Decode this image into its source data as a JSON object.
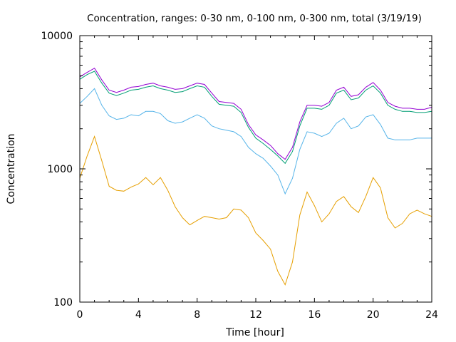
{
  "chart_data": {
    "type": "line",
    "title": "Concentration, ranges: 0-30 nm, 0-100 nm, 0-300 nm, total (3/19/19)",
    "xlabel": "Time [hour]",
    "ylabel": "Concentration",
    "xlim": [
      0,
      24
    ],
    "ylim": [
      100,
      10000
    ],
    "yscale": "log",
    "grid": false,
    "legend": "none",
    "x_ticks": [
      0,
      4,
      8,
      12,
      16,
      20,
      24
    ],
    "y_ticks": [
      100,
      1000,
      10000
    ],
    "x": [
      0,
      0.5,
      1,
      1.5,
      2,
      2.5,
      3,
      3.5,
      4,
      4.5,
      5,
      5.5,
      6,
      6.5,
      7,
      7.5,
      8,
      8.5,
      9,
      9.5,
      10,
      10.5,
      11,
      11.5,
      12,
      12.5,
      13,
      13.5,
      14,
      14.5,
      15,
      15.5,
      16,
      16.5,
      17,
      17.5,
      18,
      18.5,
      19,
      19.5,
      20,
      20.5,
      21,
      21.5,
      22,
      22.5,
      23,
      23.5,
      24
    ],
    "series": [
      {
        "color": "#e69f00",
        "values": [
          850,
          1250,
          1750,
          1150,
          740,
          690,
          680,
          730,
          770,
          860,
          760,
          860,
          690,
          520,
          430,
          380,
          410,
          440,
          430,
          420,
          430,
          500,
          490,
          430,
          330,
          290,
          250,
          170,
          135,
          200,
          450,
          670,
          530,
          400,
          460,
          570,
          620,
          520,
          470,
          620,
          860,
          720,
          430,
          360,
          390,
          460,
          490,
          460,
          440
        ]
      },
      {
        "color": "#56b4e9",
        "values": [
          3100,
          3500,
          4000,
          3000,
          2500,
          2350,
          2400,
          2550,
          2500,
          2700,
          2700,
          2600,
          2300,
          2200,
          2250,
          2400,
          2550,
          2400,
          2100,
          2000,
          1950,
          1900,
          1750,
          1450,
          1300,
          1200,
          1050,
          900,
          650,
          850,
          1400,
          1900,
          1850,
          1750,
          1850,
          2200,
          2400,
          2000,
          2100,
          2450,
          2550,
          2150,
          1700,
          1650,
          1650,
          1650,
          1700,
          1700,
          1700
        ]
      },
      {
        "color": "#009e73",
        "values": [
          4700,
          5100,
          5400,
          4400,
          3700,
          3550,
          3700,
          3900,
          3950,
          4100,
          4200,
          4000,
          3900,
          3750,
          3800,
          4000,
          4200,
          4100,
          3500,
          3050,
          3000,
          2950,
          2650,
          2050,
          1700,
          1550,
          1400,
          1250,
          1100,
          1350,
          2100,
          2850,
          2850,
          2800,
          3000,
          3700,
          3900,
          3300,
          3400,
          3900,
          4200,
          3700,
          3000,
          2800,
          2700,
          2700,
          2650,
          2650,
          2700
        ]
      },
      {
        "color": "#9400d3",
        "values": [
          4900,
          5300,
          5700,
          4650,
          3900,
          3750,
          3900,
          4100,
          4150,
          4300,
          4400,
          4200,
          4100,
          3950,
          4000,
          4200,
          4400,
          4300,
          3700,
          3200,
          3150,
          3100,
          2800,
          2150,
          1800,
          1650,
          1500,
          1300,
          1180,
          1450,
          2250,
          3000,
          3000,
          2950,
          3150,
          3900,
          4100,
          3500,
          3600,
          4100,
          4450,
          3900,
          3150,
          2950,
          2850,
          2850,
          2800,
          2800,
          2900
        ]
      }
    ]
  }
}
